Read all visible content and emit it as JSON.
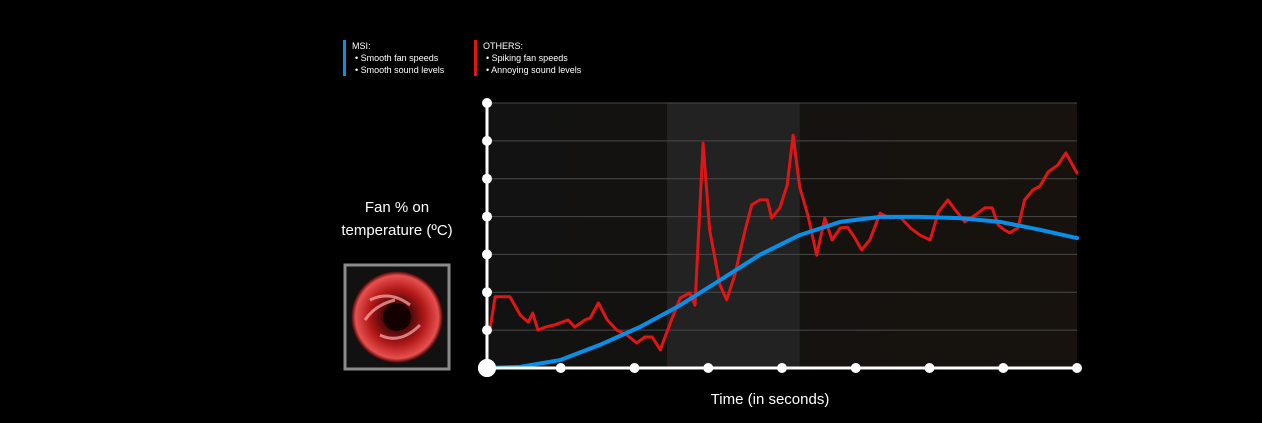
{
  "chart_data": {
    "type": "line",
    "ylabel": "Fan % on temperature (ºC)",
    "xlabel": "Time (in seconds)",
    "xlim": [
      0,
      8
    ],
    "xticks": [
      0,
      1,
      2,
      3,
      4,
      5,
      6,
      7,
      8
    ],
    "ylim": [
      0,
      7
    ],
    "yticks": [
      0,
      1,
      2,
      3,
      4,
      5,
      6,
      7
    ],
    "grid": true,
    "highlight_x": [
      2.44,
      4.24
    ],
    "series": [
      {
        "name": "MSI:",
        "notes": [
          "Smooth fan speeds",
          "Smooth sound levels"
        ],
        "color": "#0a8fe8",
        "x": [
          0,
          0.45,
          0.99,
          1.53,
          2.07,
          2.62,
          3.16,
          3.7,
          4.24,
          4.79,
          5.33,
          5.87,
          6.41,
          6.96,
          7.5,
          8.0
        ],
        "values": [
          0,
          0.03,
          0.21,
          0.61,
          1.08,
          1.66,
          2.32,
          2.99,
          3.51,
          3.86,
          3.99,
          3.99,
          3.96,
          3.86,
          3.65,
          3.43
        ]
      },
      {
        "name": "OTHERS:",
        "notes": [
          "Spiking fan speeds",
          "Annoying sound levels"
        ],
        "color": "#e01515",
        "x": [
          0.04,
          0.11,
          0.31,
          0.45,
          0.56,
          0.62,
          0.69,
          0.79,
          0.92,
          1.1,
          1.19,
          1.33,
          1.4,
          1.51,
          1.63,
          1.76,
          1.9,
          2.03,
          2.14,
          2.24,
          2.35,
          2.49,
          2.62,
          2.75,
          2.82,
          2.93,
          3.02,
          3.16,
          3.25,
          3.36,
          3.5,
          3.59,
          3.7,
          3.8,
          3.86,
          3.97,
          4.07,
          4.15,
          4.24,
          4.35,
          4.47,
          4.58,
          4.68,
          4.79,
          4.89,
          4.99,
          5.08,
          5.19,
          5.33,
          5.46,
          5.6,
          5.74,
          5.87,
          6.01,
          6.12,
          6.25,
          6.35,
          6.48,
          6.62,
          6.75,
          6.85,
          6.93,
          7.02,
          7.09,
          7.2,
          7.29,
          7.4,
          7.5,
          7.61,
          7.74,
          7.85,
          8.0
        ],
        "values": [
          1.0,
          1.88,
          1.88,
          1.4,
          1.21,
          1.45,
          1.0,
          1.08,
          1.14,
          1.27,
          1.08,
          1.27,
          1.32,
          1.72,
          1.27,
          1.0,
          0.87,
          0.66,
          0.82,
          0.82,
          0.48,
          1.21,
          1.85,
          1.98,
          1.66,
          5.94,
          3.64,
          2.19,
          1.8,
          2.46,
          3.64,
          4.31,
          4.44,
          4.44,
          3.96,
          4.23,
          4.83,
          6.15,
          4.78,
          4.04,
          2.98,
          3.96,
          3.38,
          3.7,
          3.72,
          3.43,
          3.12,
          3.38,
          4.09,
          3.96,
          3.99,
          3.7,
          3.51,
          3.38,
          4.12,
          4.44,
          4.17,
          3.86,
          4.04,
          4.23,
          4.23,
          3.78,
          3.64,
          3.57,
          3.7,
          4.44,
          4.7,
          4.81,
          5.18,
          5.36,
          5.68,
          5.15
        ]
      }
    ]
  }
}
